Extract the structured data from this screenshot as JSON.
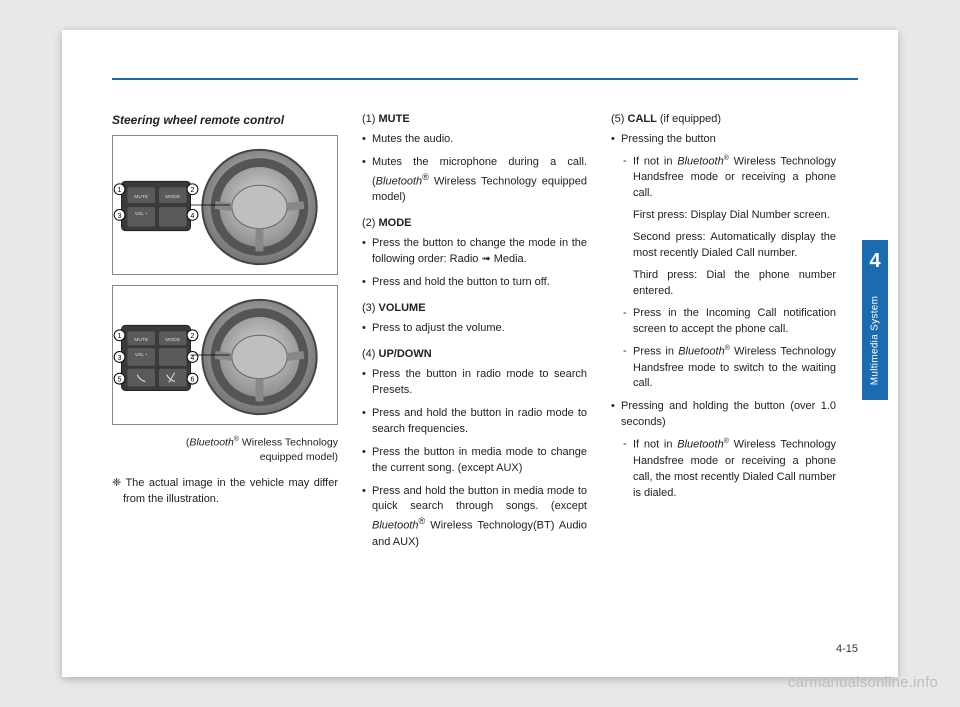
{
  "page": {
    "number": "4-15",
    "chapter_num": "4",
    "chapter_label": "Multimedia System",
    "watermark": "carmanualsonline.info"
  },
  "col1": {
    "title": "Steering wheel remote control",
    "caption_line1_italic": "Bluetooth",
    "caption_line1_rest": " Wireless Technology",
    "caption_line2": "equipped model)",
    "note_symbol": "❈",
    "note": " The actual image in the vehicle may differ from the illustration.",
    "fig_labels4": [
      "1",
      "2",
      "3",
      "4"
    ],
    "fig_labels6": [
      "1",
      "2",
      "3",
      "4",
      "5",
      "6"
    ],
    "btn_mute": "MUTE",
    "btn_mode": "MODE",
    "btn_vol": "VOL +"
  },
  "col2": {
    "items": [
      {
        "num": "(1) ",
        "label": "MUTE",
        "bullets": [
          "Mutes the audio.",
          "Mutes the microphone during a call. (<i>Bluetooth</i><sup>®</sup> Wireless Technology equipped model)"
        ]
      },
      {
        "num": "(2) ",
        "label": "MODE",
        "bullets": [
          "Press the button to change the mode in the following order: Radio ➟ Media.",
          "Press and hold the button to turn off."
        ]
      },
      {
        "num": "(3) ",
        "label": "VOLUME",
        "bullets": [
          "Press to adjust the volume."
        ]
      },
      {
        "num": "(4) ",
        "label": "UP/DOWN",
        "bullets": [
          "Press the button in radio mode to search Presets.",
          "Press and hold the button in radio mode to search frequencies.",
          "Press the button in media mode to change the current song. (except AUX)",
          "Press and hold the button in media mode to quick search through songs. (except <i>Bluetooth</i><sup>®</sup> Wireless Technology(BT) Audio and AUX)"
        ]
      }
    ]
  },
  "col3": {
    "head_num": "(5) ",
    "head_label": "CALL",
    "head_suffix": " (if equipped)",
    "bullet1": "Pressing the button",
    "dash1_part1": "If not in ",
    "dash1_italic": "Bluetooth",
    "dash1_part2": " Wireless Technology Handsfree mode or receiving a phone call.",
    "sub1": "First press: Display Dial Number screen.",
    "sub2": "Second press: Automatically dis­play the most recently Dialed Call number.",
    "sub3": "Third press: Dial the phone num­ber entered.",
    "dash2": "Press in the Incoming Call notifi­cation screen to accept the phone call.",
    "dash3_part1": "Press in ",
    "dash3_italic": "Bluetooth",
    "dash3_part2": " Wireless Technology Handsfree mode to switch to the waiting call.",
    "bullet2": "Pressing and holding the button (over 1.0 seconds)",
    "dash4_part1": "If not in ",
    "dash4_italic": "Bluetooth",
    "dash4_part2": " Wireless Technology Handsfree mode or receiving a phone call, the most recently Dialed Call number is dialed."
  }
}
